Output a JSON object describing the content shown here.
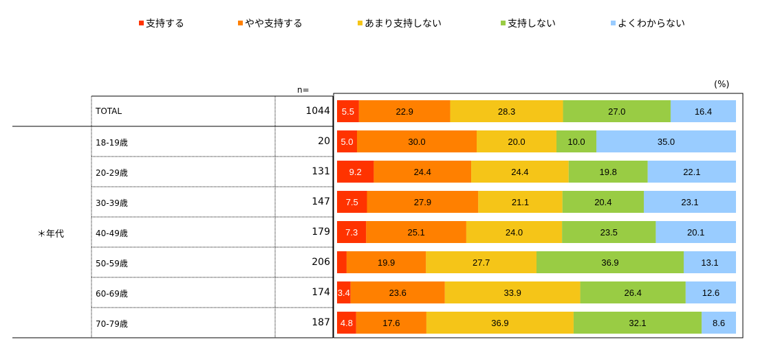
{
  "unit_label": "(%)",
  "n_header": "n=",
  "group_label": "＊年代",
  "chart_data": {
    "type": "bar",
    "orientation": "horizontal",
    "stacked": "100%",
    "legend_position": "top",
    "categories": [
      "TOTAL",
      "18-19歳",
      "20-29歳",
      "30-39歳",
      "40-49歳",
      "50-59歳",
      "60-69歳",
      "70-79歳"
    ],
    "n": [
      "1044",
      "20",
      "131",
      "147",
      "179",
      "206",
      "174",
      "187"
    ],
    "series": [
      {
        "name": "支持する",
        "color": "#FF3300",
        "values": [
          5.5,
          5.0,
          9.2,
          7.5,
          7.3,
          2.4,
          3.4,
          4.8
        ],
        "labels": [
          "5.5",
          "5.0",
          "9.2",
          "7.5",
          "7.3",
          "",
          "3.4",
          "4.8"
        ],
        "label_color": "#ffffff"
      },
      {
        "name": "やや支持する",
        "color": "#FF8000",
        "values": [
          22.9,
          30.0,
          24.4,
          27.9,
          25.1,
          19.9,
          23.6,
          17.6
        ],
        "labels": [
          "22.9",
          "30.0",
          "24.4",
          "27.9",
          "25.1",
          "19.9",
          "23.6",
          "17.6"
        ],
        "label_color": "#000000"
      },
      {
        "name": "あまり支持しない",
        "color": "#F5C518",
        "values": [
          28.3,
          20.0,
          24.4,
          21.1,
          24.0,
          27.7,
          33.9,
          36.9
        ],
        "labels": [
          "28.3",
          "20.0",
          "24.4",
          "21.1",
          "24.0",
          "27.7",
          "33.9",
          "36.9"
        ],
        "label_color": "#000000"
      },
      {
        "name": "支持しない",
        "color": "#99CC44",
        "values": [
          27.0,
          10.0,
          19.8,
          20.4,
          23.5,
          36.9,
          26.4,
          32.1
        ],
        "labels": [
          "27.0",
          "10.0",
          "19.8",
          "20.4",
          "23.5",
          "36.9",
          "26.4",
          "32.1"
        ],
        "label_color": "#000000"
      },
      {
        "name": "よくわからない",
        "color": "#99CCFF",
        "values": [
          16.4,
          35.0,
          22.1,
          23.1,
          20.1,
          13.1,
          12.6,
          8.6
        ],
        "labels": [
          "16.4",
          "35.0",
          "22.1",
          "23.1",
          "20.1",
          "13.1",
          "12.6",
          "8.6"
        ],
        "label_color": "#000000"
      }
    ]
  }
}
